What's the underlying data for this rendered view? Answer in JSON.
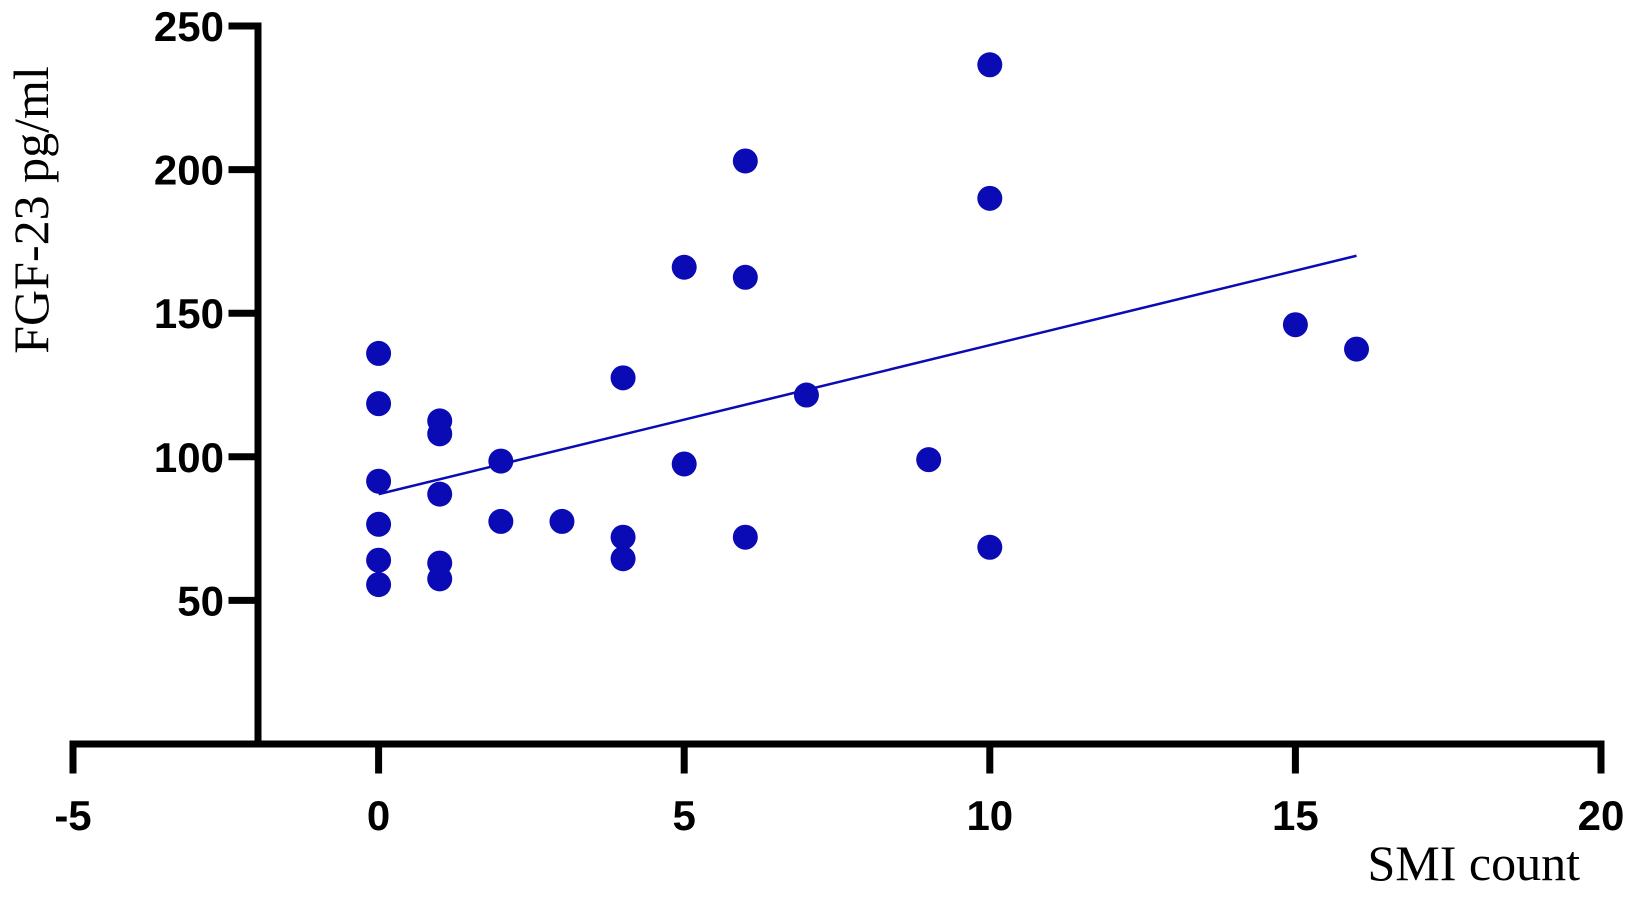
{
  "chart_data": {
    "type": "scatter",
    "x_label": "SMI count",
    "y_label": "FGF-23 pg/ml",
    "color": "#0b0bb5",
    "x": [
      0,
      0,
      0,
      0,
      0,
      0,
      1,
      1,
      1,
      1,
      1,
      2,
      2,
      3,
      4,
      4,
      4,
      5,
      5,
      6,
      6,
      6,
      7,
      9,
      10,
      10,
      10,
      15,
      16
    ],
    "values": [
      136,
      118.5,
      91.5,
      76.5,
      64,
      55.5,
      112.5,
      108,
      87,
      63,
      57.5,
      98.5,
      77.5,
      77.5,
      127.5,
      72,
      64.5,
      166,
      97.5,
      203,
      162.5,
      72,
      121.5,
      99,
      236.5,
      190,
      68.5,
      146,
      137.5
    ],
    "trendline": {
      "x": [
        0,
        16
      ],
      "values": [
        87,
        170
      ]
    },
    "xlim": [
      -5,
      20
    ],
    "xticks": [
      -5,
      0,
      5,
      10,
      15,
      20
    ],
    "ylim": [
      0,
      250
    ],
    "yticks": [
      50,
      100,
      150,
      200,
      250
    ]
  }
}
